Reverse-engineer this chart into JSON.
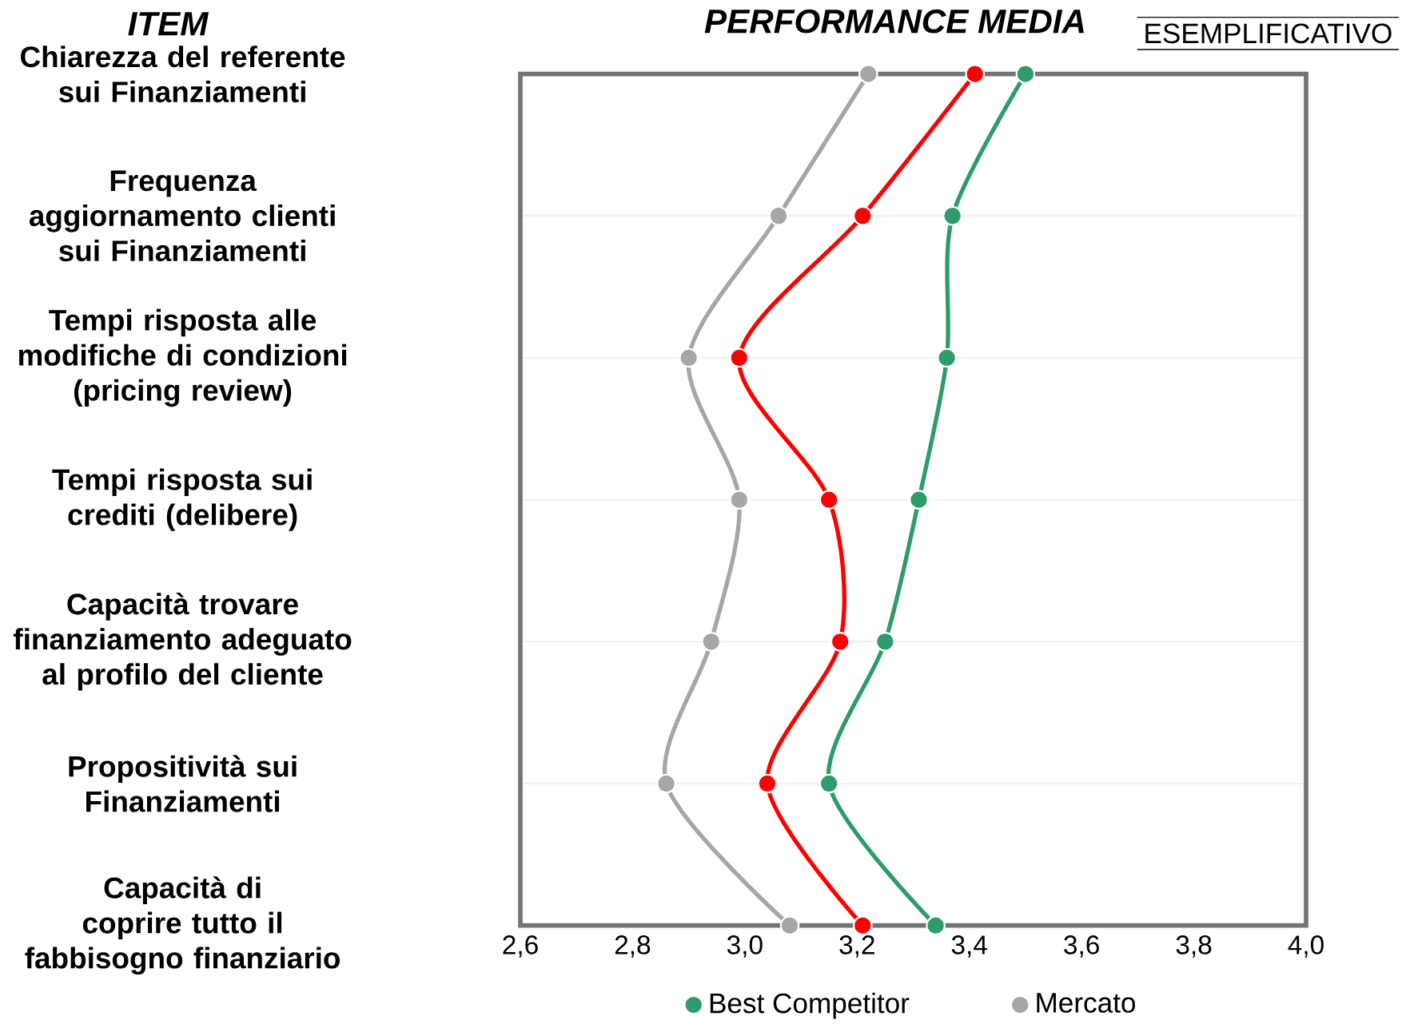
{
  "chart_data": {
    "type": "line",
    "orientation": "horizontal",
    "title": "PERFORMANCE MEDIA",
    "ylabel": "ITEM",
    "annotations": [
      "ESEMPLIFICATIVO"
    ],
    "categories": [
      "Chiarezza del referente sui Finanziamenti",
      "Frequenza aggiornamento clienti sui Finanziamenti",
      "Tempi risposta alle modifiche di condizioni (pricing review)",
      "Tempi risposta sui crediti (delibere)",
      "Capacità trovare finanziamento adeguato al profilo del cliente",
      "Propositività sui Finanziamenti",
      "Capacità di coprire tutto il fabbisogno finanziario"
    ],
    "series": [
      {
        "color": "#ff0000",
        "values": [
          3.41,
          3.21,
          2.99,
          3.15,
          3.17,
          3.04,
          3.21
        ]
      },
      {
        "name": "Best Competitor",
        "color": "#2e9b6a",
        "values": [
          3.5,
          3.37,
          3.36,
          3.31,
          3.25,
          3.15,
          3.34
        ]
      },
      {
        "name": "Mercato",
        "color": "#a6a6a6",
        "values": [
          3.22,
          3.06,
          2.9,
          2.99,
          2.94,
          2.86,
          3.08
        ]
      }
    ],
    "xlim": [
      2.6,
      4.0
    ],
    "xticks": [
      {
        "value": 2.6,
        "label": "2,6"
      },
      {
        "value": 2.8,
        "label": "2,8"
      },
      {
        "value": 3.0,
        "label": "3,0"
      },
      {
        "value": 3.2,
        "label": "3,2"
      },
      {
        "value": 3.4,
        "label": "3,4"
      },
      {
        "value": 3.6,
        "label": "3,6"
      },
      {
        "value": 3.8,
        "label": "3,8"
      },
      {
        "value": 4.0,
        "label": "4,0"
      }
    ],
    "grid": "y",
    "legend": "bottom",
    "marker": "circle",
    "line_style": "solid"
  }
}
